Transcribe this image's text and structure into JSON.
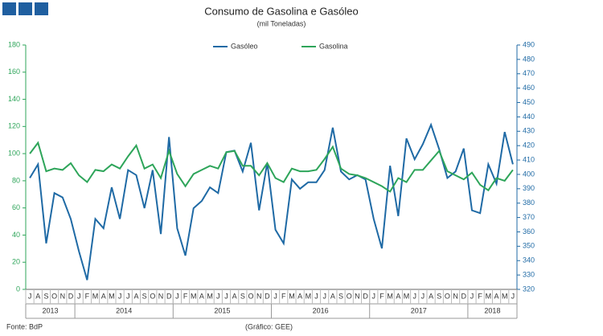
{
  "chart_data": {
    "type": "line",
    "title": "Consumo de Gasolina e Gasóleo",
    "subtitle": "(mil Toneladas)",
    "source": "Fonte: BdP",
    "credit": "(Gráfico: GEE)",
    "categories": [
      "J",
      "A",
      "S",
      "O",
      "N",
      "D",
      "J",
      "F",
      "M",
      "A",
      "M",
      "J",
      "J",
      "A",
      "S",
      "O",
      "N",
      "D",
      "J",
      "F",
      "M",
      "A",
      "M",
      "J",
      "J",
      "A",
      "S",
      "O",
      "N",
      "D",
      "J",
      "F",
      "M",
      "A",
      "M",
      "J",
      "J",
      "A",
      "S",
      "O",
      "N",
      "D",
      "J",
      "F",
      "M",
      "A",
      "M",
      "J",
      "J",
      "A",
      "S",
      "O",
      "N",
      "D",
      "J",
      "F",
      "M",
      "A",
      "M",
      "J"
    ],
    "years": [
      "2013",
      "2014",
      "2015",
      "2016",
      "2017",
      "2018"
    ],
    "series": [
      {
        "name": "Gasóleo",
        "color": "#1f6aa5",
        "axis": "y2",
        "values": [
          397.5,
          407,
          352,
          387,
          384,
          369,
          346.5,
          326.5,
          369,
          362.5,
          391,
          369,
          403,
          399.5,
          376.5,
          403,
          358.5,
          426,
          362.5,
          343.5,
          376.5,
          381.5,
          391,
          387,
          415.5,
          416.5,
          402,
          422,
          375,
          408,
          361.5,
          352,
          396.5,
          390,
          394.5,
          394.5,
          403,
          432.5,
          402,
          396.5,
          399.5,
          396.5,
          369,
          348.5,
          406,
          371,
          425,
          410.5,
          421,
          434.5,
          417.5,
          397.5,
          402,
          418,
          375,
          373,
          407,
          393.5,
          429.5,
          407
        ]
      },
      {
        "name": "Gasolina",
        "color": "#2ea55a",
        "values": [
          100,
          108,
          87,
          89,
          88,
          93,
          84,
          79,
          88,
          87,
          92,
          89,
          98,
          106,
          89,
          92,
          82,
          102,
          85,
          76,
          85,
          88,
          91,
          89,
          101,
          102,
          91,
          91,
          84,
          93,
          82,
          79,
          89,
          87,
          87,
          88,
          96,
          105,
          89,
          85,
          84,
          82,
          79,
          76,
          72,
          82,
          79,
          88,
          88,
          95,
          102,
          87,
          84,
          81,
          86,
          77,
          73,
          82,
          80,
          88
        ]
      }
    ],
    "ylim": [
      0,
      180
    ],
    "yticks": [
      0,
      20,
      40,
      60,
      80,
      100,
      120,
      140,
      160,
      180
    ],
    "y2lim": [
      320,
      490
    ],
    "y2ticks": [
      320,
      330,
      340,
      350,
      360,
      370,
      380,
      390,
      400,
      410,
      420,
      430,
      440,
      450,
      460,
      470,
      480,
      490
    ],
    "grid": false
  }
}
